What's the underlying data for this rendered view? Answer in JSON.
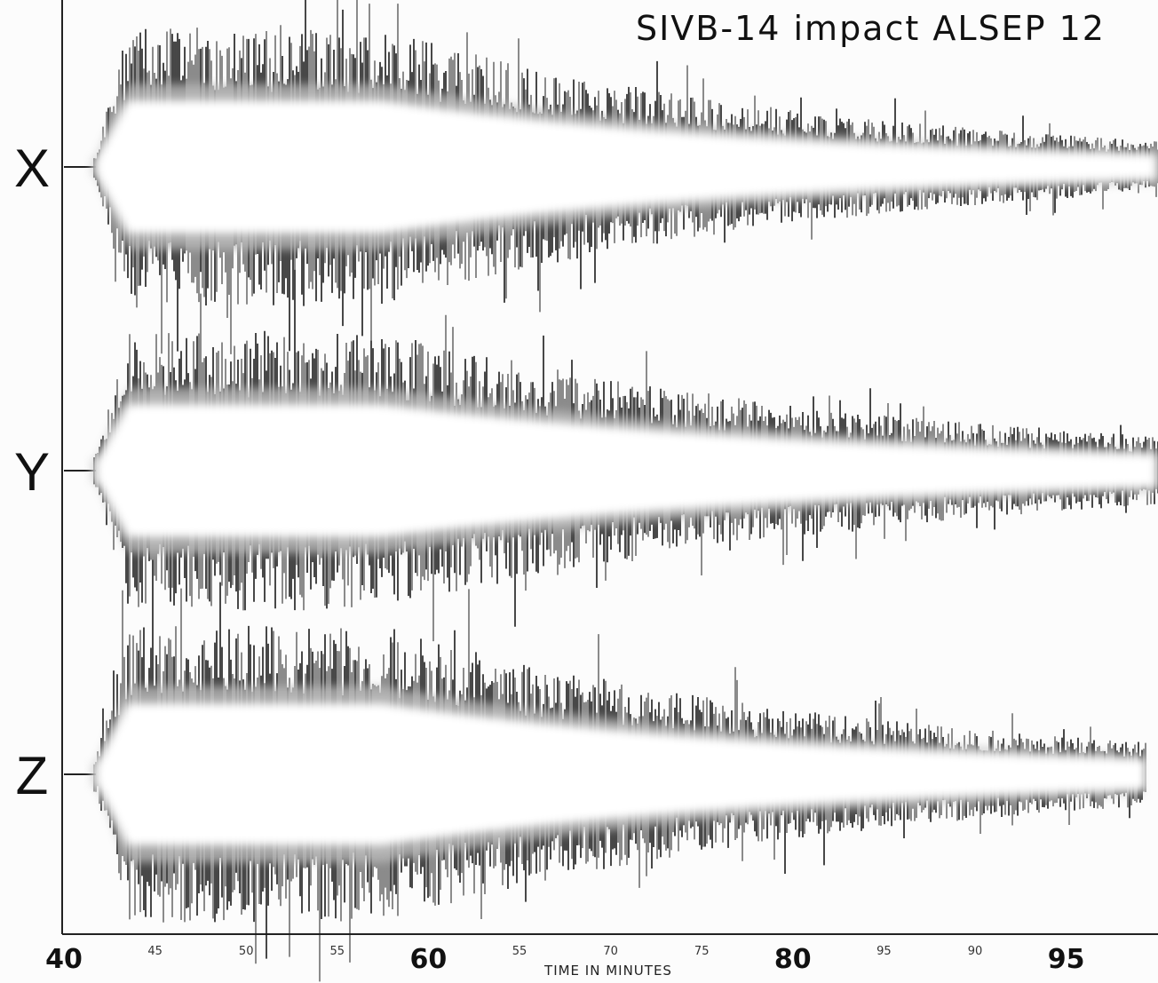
{
  "title": "SIVB-14 impact  ALSEP 12",
  "traces": [
    {
      "label": "X"
    },
    {
      "label": "Y"
    },
    {
      "label": "Z"
    }
  ],
  "axis": {
    "title": "TIME IN MINUTES",
    "ticks": [
      {
        "label": "40",
        "major": true
      },
      {
        "label": "45",
        "major": false
      },
      {
        "label": "50",
        "major": false
      },
      {
        "label": "55",
        "major": false
      },
      {
        "label": "60",
        "major": true
      },
      {
        "label": "55",
        "major": false
      },
      {
        "label": "70",
        "major": false
      },
      {
        "label": "75",
        "major": false
      },
      {
        "label": "80",
        "major": true
      },
      {
        "label": "95",
        "major": false
      },
      {
        "label": "90",
        "major": false
      },
      {
        "label": "95",
        "major": true
      }
    ]
  }
}
